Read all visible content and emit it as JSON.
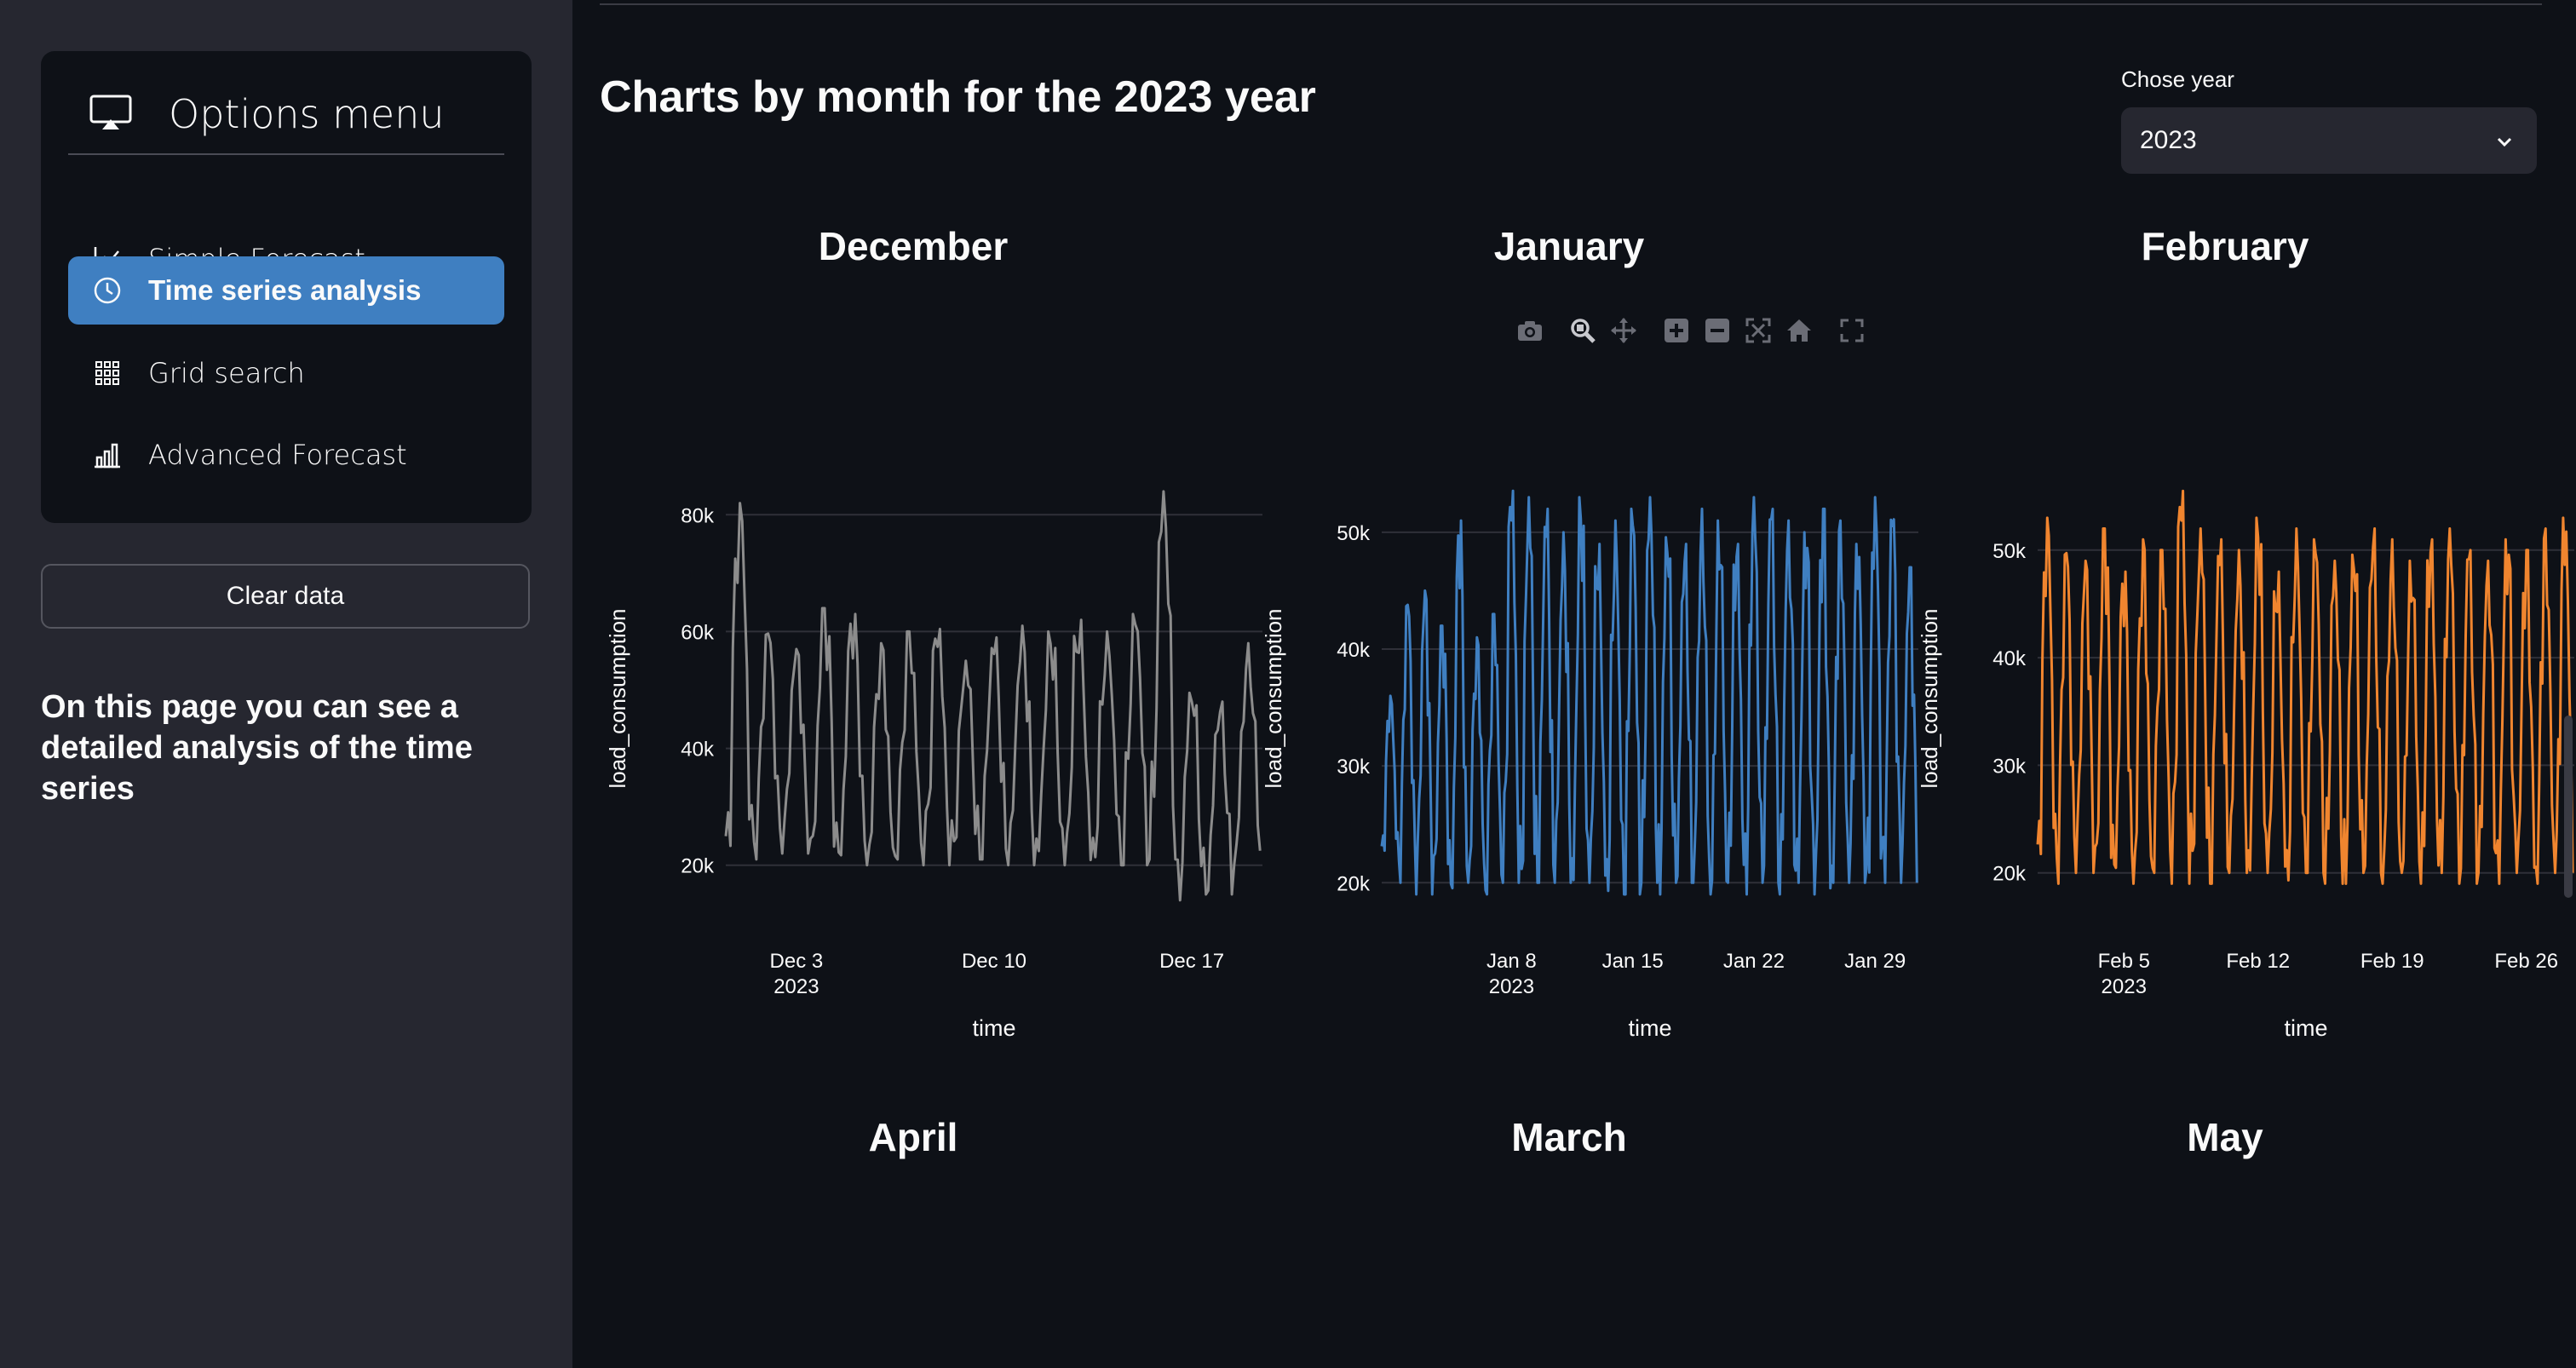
{
  "sidebar": {
    "menu_title": "Options menu",
    "items": [
      {
        "label": "Simple Forecast",
        "icon": "line-chart-icon",
        "active": false
      },
      {
        "label": "Time series analysis",
        "icon": "clock-icon",
        "active": true
      },
      {
        "label": "Grid search",
        "icon": "grid-icon",
        "active": false
      },
      {
        "label": "Advanced Forecast",
        "icon": "bar-chart-icon",
        "active": false
      }
    ],
    "clear_label": "Clear data",
    "description": "On this page you can see a detailed analysis of the time series"
  },
  "main": {
    "heading": "Charts by month for the 2023 year",
    "year_select": {
      "label": "Chose year",
      "value": "2023"
    },
    "modebar_icons": [
      "camera-icon",
      "zoom-icon",
      "pan-icon",
      "zoom-in-icon",
      "zoom-out-icon",
      "autoscale-icon",
      "reset-axes-icon",
      "fullscreen-icon"
    ],
    "bottom_titles": [
      "April",
      "March",
      "May"
    ]
  },
  "chart_data": [
    {
      "type": "line",
      "title": "December",
      "xlabel": "time",
      "ylabel": "load_consumption",
      "color": "#8c8c8c",
      "x_ticks": [
        {
          "label": "Dec 3",
          "sub": "2023"
        },
        {
          "label": "Dec 10",
          "sub": ""
        },
        {
          "label": "Dec 17",
          "sub": ""
        }
      ],
      "y_ticks": [
        "20k",
        "40k",
        "60k",
        "80k"
      ],
      "ylim": [
        15000,
        85000
      ],
      "x": [
        "Dec 1",
        "Dec 2",
        "Dec 3",
        "Dec 4",
        "Dec 5",
        "Dec 6",
        "Dec 7",
        "Dec 8",
        "Dec 9",
        "Dec 10",
        "Dec 11",
        "Dec 12",
        "Dec 13",
        "Dec 14",
        "Dec 15",
        "Dec 16",
        "Dec 17",
        "Dec 18",
        "Dec 19"
      ],
      "daily_max": [
        82000,
        60000,
        57000,
        64000,
        63000,
        58000,
        60000,
        61000,
        55000,
        59000,
        61000,
        60000,
        62000,
        60000,
        63000,
        84000,
        50000,
        48000,
        58000
      ],
      "daily_min": [
        20000,
        21000,
        22000,
        20000,
        21000,
        20000,
        21000,
        20000,
        22000,
        21000,
        20000,
        21000,
        20000,
        21000,
        20000,
        21000,
        14000,
        15000,
        20000
      ]
    },
    {
      "type": "line",
      "title": "January",
      "xlabel": "time",
      "ylabel": "load_consumption",
      "color": "#3f7fc1",
      "x_ticks": [
        {
          "label": "Jan 8",
          "sub": "2023"
        },
        {
          "label": "Jan 15",
          "sub": ""
        },
        {
          "label": "Jan 22",
          "sub": ""
        },
        {
          "label": "Jan 29",
          "sub": ""
        }
      ],
      "y_ticks": [
        "20k",
        "30k",
        "40k",
        "50k"
      ],
      "ylim": [
        19000,
        54000
      ],
      "x": [
        "Jan 1",
        "Jan 2",
        "Jan 3",
        "Jan 4",
        "Jan 5",
        "Jan 6",
        "Jan 7",
        "Jan 8",
        "Jan 9",
        "Jan 10",
        "Jan 11",
        "Jan 12",
        "Jan 13",
        "Jan 14",
        "Jan 15",
        "Jan 16",
        "Jan 17",
        "Jan 18",
        "Jan 19",
        "Jan 20",
        "Jan 21",
        "Jan 22",
        "Jan 23",
        "Jan 24",
        "Jan 25",
        "Jan 26",
        "Jan 27",
        "Jan 28",
        "Jan 29",
        "Jan 30",
        "Jan 31"
      ],
      "daily_max": [
        36000,
        44000,
        45000,
        42000,
        51000,
        41000,
        43000,
        54000,
        53000,
        52000,
        50000,
        53000,
        49000,
        51000,
        52000,
        53000,
        50000,
        49000,
        52000,
        51000,
        49000,
        53000,
        52000,
        51000,
        50000,
        52000,
        51000,
        49000,
        53000,
        52000,
        47000
      ],
      "daily_min": [
        22000,
        20000,
        19000,
        20000,
        19000,
        20000,
        19000,
        20000,
        19000,
        20000,
        20000,
        19000,
        20000,
        19000,
        19000,
        20000,
        19000,
        20000,
        20000,
        19000,
        20000,
        19000,
        20000,
        19000,
        20000,
        19000,
        20000,
        20000,
        19000,
        20000,
        20000
      ]
    },
    {
      "type": "line",
      "title": "February",
      "xlabel": "time",
      "ylabel": "load_consumption",
      "color": "#f0852f",
      "x_ticks": [
        {
          "label": "Feb 5",
          "sub": "2023"
        },
        {
          "label": "Feb 12",
          "sub": ""
        },
        {
          "label": "Feb 19",
          "sub": ""
        },
        {
          "label": "Feb 26",
          "sub": ""
        }
      ],
      "y_ticks": [
        "20k",
        "30k",
        "40k",
        "50k"
      ],
      "ylim": [
        18000,
        56000
      ],
      "x": [
        "Feb 1",
        "Feb 2",
        "Feb 3",
        "Feb 4",
        "Feb 5",
        "Feb 6",
        "Feb 7",
        "Feb 8",
        "Feb 9",
        "Feb 10",
        "Feb 11",
        "Feb 12",
        "Feb 13",
        "Feb 14",
        "Feb 15",
        "Feb 16",
        "Feb 17",
        "Feb 18",
        "Feb 19",
        "Feb 20",
        "Feb 21",
        "Feb 22",
        "Feb 23",
        "Feb 24",
        "Feb 25",
        "Feb 26",
        "Feb 27",
        "Feb 28"
      ],
      "daily_max": [
        53000,
        50000,
        49000,
        52000,
        48000,
        51000,
        50000,
        56000,
        52000,
        51000,
        50000,
        53000,
        48000,
        52000,
        51000,
        49000,
        50000,
        52000,
        51000,
        49000,
        51000,
        52000,
        50000,
        49000,
        51000,
        50000,
        52000,
        53000
      ],
      "daily_min": [
        20000,
        19000,
        20000,
        19000,
        20000,
        19000,
        20000,
        19000,
        20000,
        19000,
        20000,
        19000,
        20000,
        19000,
        20000,
        19000,
        19000,
        20000,
        19000,
        20000,
        19000,
        20000,
        19000,
        20000,
        19000,
        20000,
        19000,
        20000
      ]
    }
  ]
}
